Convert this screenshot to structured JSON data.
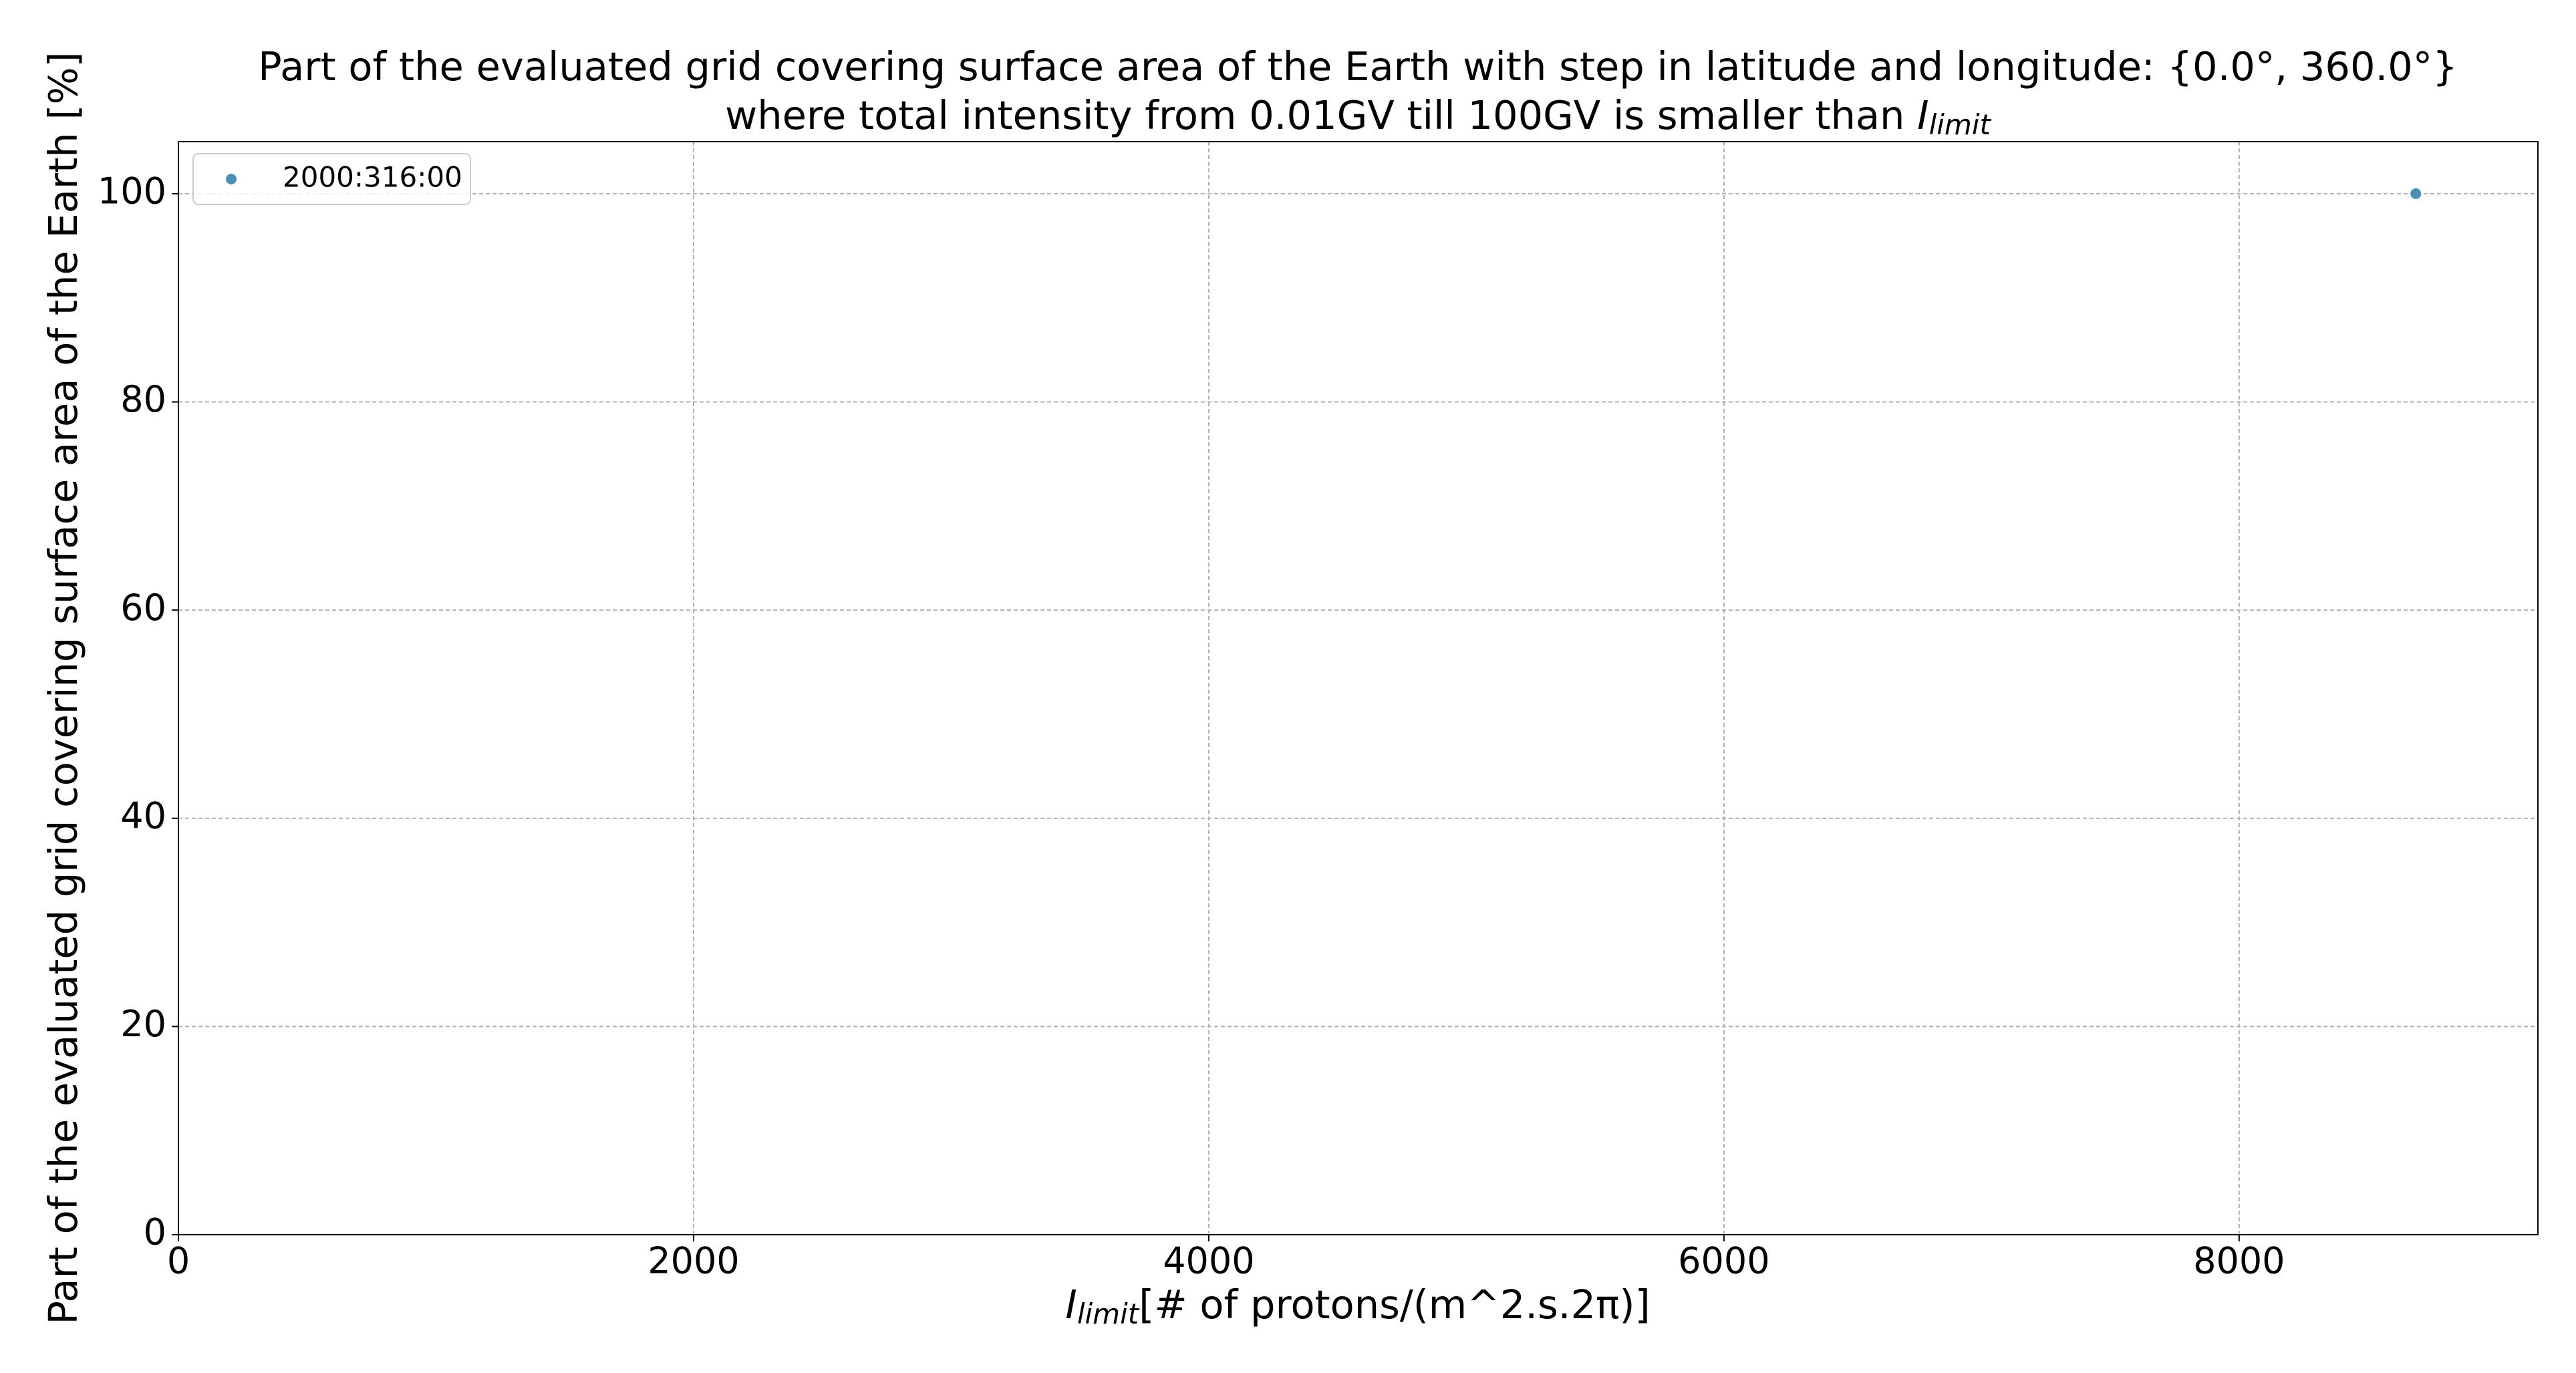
{
  "chart_data": {
    "type": "scatter",
    "title": [
      "Part of the evaluated grid covering surface area of the Earth with step in latitude and longitude: {0.0°, 360.0°}",
      "where total intensity from 0.01GV till 100GV is smaller than "
    ],
    "symbol": "I",
    "symbol_subscript": "limit",
    "xlabel": "[# of protons/(m^2.s.2π)]",
    "ylabel": "Part of the evaluated grid covering surface area of the Earth  [%]",
    "series": [
      {
        "name": "2000:316:00",
        "color": "#4a8fb5",
        "x": [
          8686
        ],
        "values": [
          100
        ]
      }
    ],
    "xlim": [
      0,
      9160
    ],
    "xticks": [
      0,
      2000,
      4000,
      6000,
      8000
    ],
    "ylim": [
      0,
      105
    ],
    "yticks": [
      0,
      20,
      40,
      60,
      80,
      100
    ],
    "grid": true,
    "legend": "upper left"
  }
}
